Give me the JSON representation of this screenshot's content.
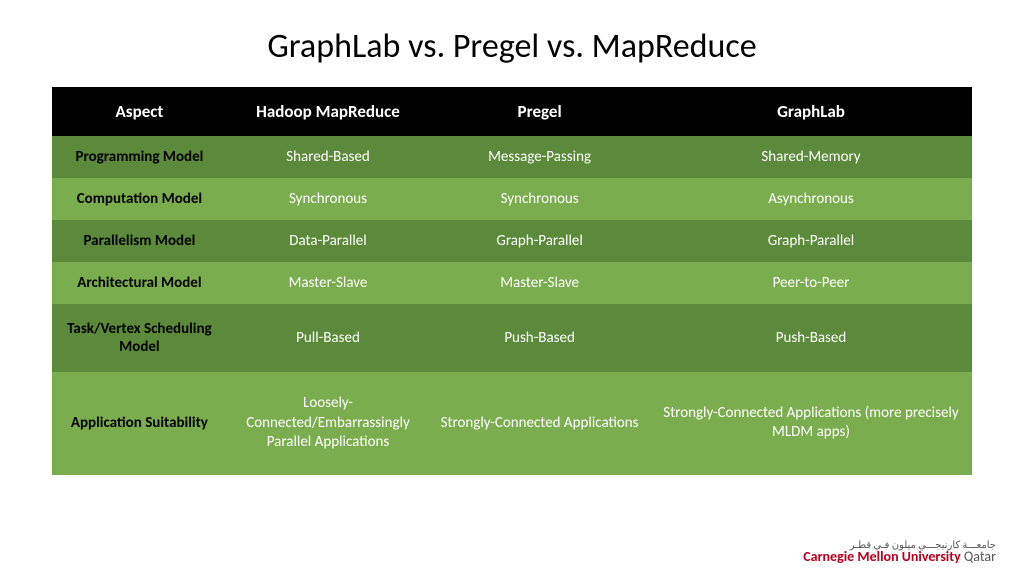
{
  "title": "GraphLab vs. Pregel vs. MapReduce",
  "table": {
    "columns": [
      "Aspect",
      "Hadoop MapReduce",
      "Pregel",
      "GraphLab"
    ],
    "column_widths_pct": [
      19,
      22,
      24,
      35
    ],
    "header_bg": "#000000",
    "header_fg": "#ffffff",
    "row_bg_dark": "#5a8a3a",
    "row_bg_light": "#7aad4d",
    "aspect_fg": "#000000",
    "cell_fg": "#ffffff",
    "title_fontsize": 34,
    "header_fontsize": 17,
    "cell_fontsize": 15,
    "rows": [
      {
        "shade": "dark",
        "cells": [
          "Programming Model",
          "Shared-Based",
          "Message-Passing",
          "Shared-Memory"
        ]
      },
      {
        "shade": "light",
        "cells": [
          "Computation Model",
          "Synchronous",
          "Synchronous",
          "Asynchronous"
        ]
      },
      {
        "shade": "dark",
        "cells": [
          "Parallelism Model",
          "Data-Parallel",
          "Graph-Parallel",
          "Graph-Parallel"
        ]
      },
      {
        "shade": "light",
        "cells": [
          "Architectural Model",
          "Master-Slave",
          "Master-Slave",
          "Peer-to-Peer"
        ]
      },
      {
        "shade": "dark",
        "extra": "tall",
        "cells": [
          "Task/Vertex Scheduling Model",
          "Pull-Based",
          "Push-Based",
          "Push-Based"
        ]
      },
      {
        "shade": "light",
        "extra": "taller",
        "cells": [
          "Application Suitability",
          "Loosely-Connected/Embarrassingly Parallel Applications",
          "Strongly-Connected Applications",
          "Strongly-Connected Applications (more precisely MLDM apps)"
        ]
      }
    ]
  },
  "footer": {
    "arabic": "جامعـــة كارنيجـــي ميلون فـي قطـر",
    "uni_main": "Carnegie Mellon University",
    "uni_suffix": " Qatar",
    "main_color": "#b4001e",
    "suffix_color": "#555555"
  }
}
